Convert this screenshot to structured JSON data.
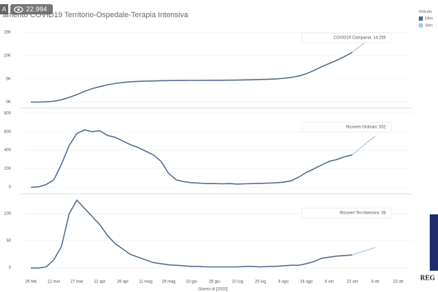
{
  "badge": "A",
  "views": "22.994",
  "sidebar_logo": "REG",
  "legend": {
    "title": "Indicato"
  },
  "chart_data": [
    {
      "type": "line",
      "title": "amento COVID19 Territorio-Ospedale-Terapia Intensiva",
      "annotation": "COVID19 Campania: 14.255",
      "ylim": [
        -500,
        17500
      ],
      "yticks": [
        {
          "value": 0,
          "label": "0K"
        },
        {
          "value": 5000,
          "label": "5K"
        },
        {
          "value": 10000,
          "label": "10K"
        },
        {
          "value": 15000,
          "label": "15K"
        }
      ],
      "grid": true,
      "series": [
        {
          "name": "Effet",
          "color": "#4e6a8a",
          "values": [
            0,
            10,
            60,
            200,
            500,
            1000,
            1600,
            2300,
            2900,
            3300,
            3700,
            4000,
            4200,
            4350,
            4450,
            4500,
            4550,
            4600,
            4620,
            4640,
            4650,
            4660,
            4670,
            4680,
            4690,
            4700,
            4710,
            4730,
            4760,
            4800,
            4850,
            4900,
            4980,
            5100,
            5300,
            5600,
            6100,
            6800,
            7600,
            8300,
            9000,
            9800,
            10700,
            null,
            null,
            null,
            null,
            null,
            null
          ]
        },
        {
          "name": "Stim",
          "color": "#a9c8e8",
          "values": [
            null,
            null,
            null,
            null,
            null,
            null,
            null,
            null,
            null,
            null,
            null,
            null,
            null,
            null,
            null,
            null,
            null,
            null,
            null,
            null,
            null,
            null,
            null,
            null,
            null,
            null,
            null,
            null,
            null,
            null,
            null,
            null,
            null,
            null,
            null,
            null,
            null,
            null,
            null,
            null,
            null,
            null,
            10700,
            12000,
            13200,
            14255,
            null,
            null,
            null
          ]
        }
      ]
    },
    {
      "type": "line",
      "annotation": "Ricoveri Ordinari: 552",
      "ylim": [
        -40,
        835
      ],
      "yticks": [
        0,
        200,
        400,
        600,
        800
      ],
      "grid": true,
      "series": [
        {
          "color": "#4e6a8a",
          "values": [
            0,
            5,
            30,
            80,
            250,
            450,
            580,
            620,
            600,
            610,
            560,
            540,
            500,
            460,
            430,
            390,
            350,
            280,
            150,
            80,
            60,
            50,
            45,
            40,
            40,
            38,
            40,
            35,
            38,
            40,
            42,
            45,
            48,
            55,
            70,
            110,
            160,
            200,
            240,
            280,
            300,
            330,
            350,
            null,
            null,
            null,
            null,
            null,
            null
          ]
        },
        {
          "color": "#a9c8e8",
          "values": [
            null,
            null,
            null,
            null,
            null,
            null,
            null,
            null,
            null,
            null,
            null,
            null,
            null,
            null,
            null,
            null,
            null,
            null,
            null,
            null,
            null,
            null,
            null,
            null,
            null,
            null,
            null,
            null,
            null,
            null,
            null,
            null,
            null,
            null,
            null,
            null,
            null,
            null,
            null,
            null,
            null,
            null,
            350,
            420,
            490,
            552,
            null,
            null,
            null
          ]
        }
      ]
    },
    {
      "type": "line",
      "annotation": "Ricoveri Ter.Intensiva: 38",
      "x_label": "Giorno di [2020]",
      "categories": [
        "26 feb",
        null,
        null,
        "12 mar",
        null,
        null,
        "27 mar",
        null,
        null,
        "11 apr",
        null,
        null,
        "26 apr",
        null,
        null,
        "11 mag",
        null,
        null,
        "26 mag",
        null,
        null,
        "10 giu",
        null,
        null,
        "25 giu",
        null,
        null,
        "10 lug",
        null,
        null,
        "25 lug",
        null,
        null,
        "9 ago",
        null,
        null,
        "24 ago",
        null,
        null,
        "8 set",
        null,
        null,
        "23 set",
        null,
        null,
        "8 ott",
        null,
        null,
        "23 ott"
      ],
      "ylim": [
        -10,
        133
      ],
      "yticks": [
        0,
        50,
        100
      ],
      "grid": true,
      "series": [
        {
          "color": "#4e6a8a",
          "values": [
            0,
            0,
            2,
            15,
            40,
            100,
            125,
            110,
            95,
            80,
            60,
            45,
            35,
            25,
            20,
            15,
            10,
            8,
            6,
            5,
            4,
            3,
            3,
            2,
            2,
            2,
            2,
            2,
            3,
            3,
            2,
            3,
            3,
            4,
            5,
            5,
            8,
            12,
            18,
            20,
            22,
            23,
            24,
            null,
            null,
            null,
            null,
            null,
            null
          ]
        },
        {
          "color": "#a9c8e8",
          "values": [
            null,
            null,
            null,
            null,
            null,
            null,
            null,
            null,
            null,
            null,
            null,
            null,
            null,
            null,
            null,
            null,
            null,
            null,
            null,
            null,
            null,
            null,
            null,
            null,
            null,
            null,
            null,
            null,
            null,
            null,
            null,
            null,
            null,
            null,
            null,
            null,
            null,
            null,
            null,
            null,
            null,
            null,
            24,
            29,
            33,
            38,
            null,
            null,
            null
          ]
        }
      ]
    }
  ]
}
